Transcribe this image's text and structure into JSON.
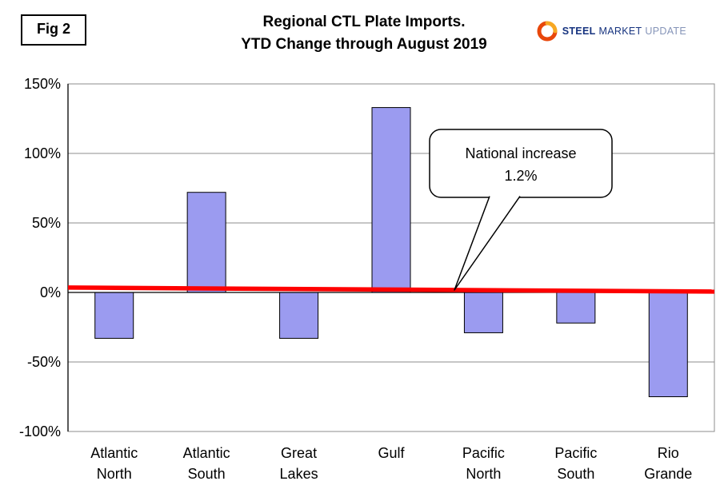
{
  "header": {
    "fig_label": "Fig 2",
    "title_line1": "Regional CTL Plate Imports.",
    "title_line2": "YTD Change through August 2019",
    "logo": {
      "steel": "STEEL",
      "market": "MARKET",
      "update": "UPDATE"
    }
  },
  "chart_data": {
    "type": "bar",
    "title": "Regional CTL Plate Imports. YTD Change through August 2019",
    "categories": [
      "Atlantic North",
      "Atlantic South",
      "Great Lakes",
      "Gulf",
      "Pacific North",
      "Pacific South",
      "Rio Grande"
    ],
    "category_lines": [
      [
        "Atlantic",
        "North"
      ],
      [
        "Atlantic",
        "South"
      ],
      [
        "Great",
        "Lakes"
      ],
      [
        "Gulf"
      ],
      [
        "Pacific",
        "North"
      ],
      [
        "Pacific",
        "South"
      ],
      [
        "Rio",
        "Grande"
      ]
    ],
    "values": [
      -33,
      72,
      -33,
      133,
      -29,
      -22,
      -75
    ],
    "unit": "%",
    "ylim": [
      -100,
      150
    ],
    "yticks": [
      150,
      100,
      50,
      0,
      -50,
      -100
    ],
    "ytick_labels": [
      "150%",
      "100%",
      "50%",
      "0%",
      "-50%",
      "-100%"
    ],
    "grid": true,
    "legend": "none",
    "bar_color": "#9b9bf0",
    "bar_border_color": "#000000",
    "gridline_color": "#8c8c8c",
    "reference_line": {
      "value": 1.2,
      "color": "#ff0000",
      "label": "National increase 1.2%"
    },
    "annotation": {
      "line1": "National increase",
      "line2": "1.2%"
    }
  }
}
